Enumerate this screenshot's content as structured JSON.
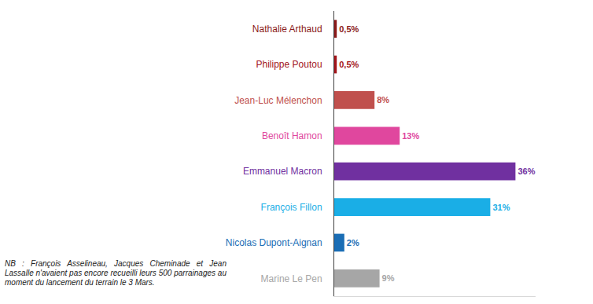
{
  "chart_data": {
    "type": "bar",
    "orientation": "horizontal",
    "categories": [
      "Nathalie Arthaud",
      "Philippe Poutou",
      "Jean-Luc Mélenchon",
      "Benoît Hamon",
      "Emmanuel Macron",
      "François Fillon",
      "Nicolas Dupont-Aignan",
      "Marine Le Pen"
    ],
    "values": [
      0.5,
      0.5,
      8,
      13,
      36,
      31,
      2,
      9
    ],
    "value_labels": [
      "0,5%",
      "0,5%",
      "8%",
      "13%",
      "36%",
      "31%",
      "2%",
      "9%"
    ],
    "colors": [
      "#8b1a1a",
      "#a3151b",
      "#c0504d",
      "#e0479e",
      "#7030a0",
      "#1aaee6",
      "#1a6db5",
      "#a6a6a6"
    ],
    "xlim": [
      0,
      40
    ],
    "tick_labels": "y",
    "data_labels": true,
    "grid": false,
    "annotations": [
      "NB : François Asselineau, Jacques Cheminade et Jean Lassalle n'avaient pas encore recueilli leurs 500 parrainages au moment du lancement du terrain le 3 Mars."
    ]
  }
}
